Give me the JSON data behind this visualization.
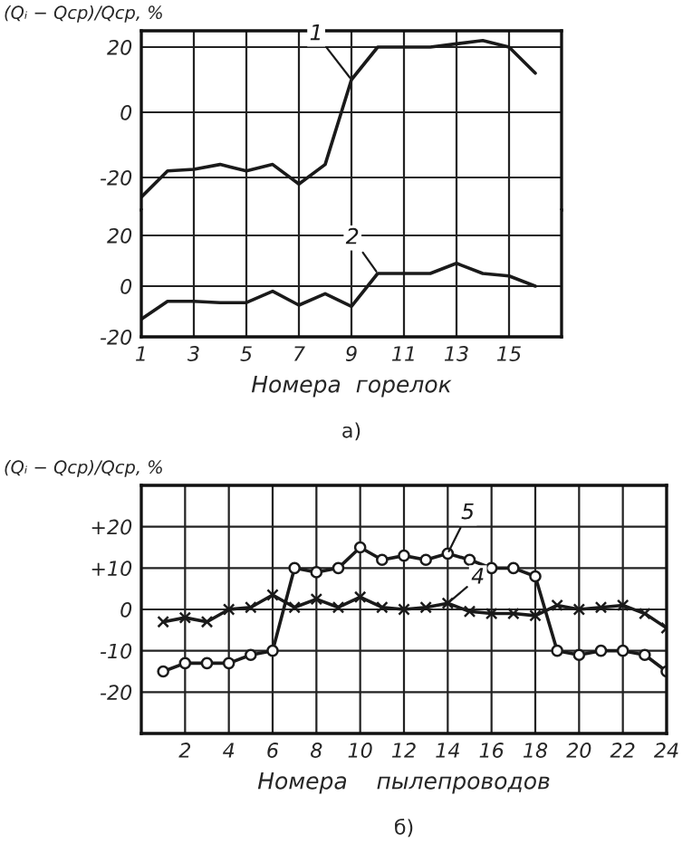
{
  "chart_data": [
    {
      "type": "line",
      "ylabel": "(Qᵢ − Qср)/Qср, %",
      "x": [
        1,
        2,
        3,
        4,
        5,
        6,
        7,
        8,
        9,
        10,
        11,
        12,
        13,
        14,
        15,
        16
      ],
      "xlim": [
        1,
        17
      ],
      "xticks": [
        1,
        3,
        5,
        7,
        9,
        11,
        13,
        15
      ],
      "ylim": [
        -30,
        25
      ],
      "yticks": [
        -20,
        0,
        20
      ],
      "tick_labels": "y",
      "grid": true,
      "line_style": "solid",
      "marker": "none",
      "series": [
        {
          "name": "1",
          "color": "#1a1a1a",
          "values": [
            -26,
            -18,
            -17.5,
            -16,
            -18,
            -16,
            -22,
            -16,
            10,
            20,
            20,
            20,
            21,
            22,
            20,
            12
          ]
        }
      ]
    },
    {
      "type": "line",
      "xlabel": "Номера  горелок",
      "x": [
        1,
        2,
        3,
        4,
        5,
        6,
        7,
        8,
        9,
        10,
        11,
        12,
        13,
        14,
        15,
        16
      ],
      "xlim": [
        1,
        17
      ],
      "xticks": [
        1,
        3,
        5,
        7,
        9,
        11,
        13,
        15
      ],
      "ylim": [
        -20,
        30
      ],
      "yticks": [
        -20,
        0,
        20
      ],
      "grid": true,
      "line_style": "solid",
      "marker": "none",
      "series": [
        {
          "name": "2",
          "color": "#1a1a1a",
          "values": [
            -13,
            -6,
            -6,
            -6.5,
            -6.5,
            -2,
            -7.5,
            -3,
            -8,
            5,
            5,
            5,
            9,
            5,
            4,
            0
          ]
        }
      ],
      "annotations": [
        "а)"
      ]
    },
    {
      "type": "line",
      "ylabel": "(Qᵢ − Qср)/Qср, %",
      "xlabel": "Номера    пылепроводов",
      "x": [
        1,
        2,
        3,
        4,
        5,
        6,
        7,
        8,
        9,
        10,
        11,
        12,
        13,
        14,
        15,
        16,
        17,
        18,
        19,
        20,
        21,
        22,
        23,
        24
      ],
      "xlim": [
        0,
        24
      ],
      "xticks": [
        2,
        4,
        6,
        8,
        10,
        12,
        14,
        16,
        18,
        20,
        22,
        24
      ],
      "ylim": [
        -30,
        30
      ],
      "yticks": [
        {
          "value": -20,
          "label": "-20"
        },
        {
          "value": -10,
          "label": "-10"
        },
        0,
        {
          "value": 10,
          "label": "+10"
        },
        {
          "value": 20,
          "label": "+20"
        }
      ],
      "grid": true,
      "line_style": "solid",
      "series": [
        {
          "name": "5",
          "color": "#1a1a1a",
          "marker": "circle",
          "values": [
            -15,
            -13,
            -13,
            -13,
            -11,
            -10,
            10,
            9,
            10,
            15,
            12,
            13,
            12,
            13.5,
            12,
            10,
            10,
            8,
            -10,
            -11,
            -10,
            -10,
            -11,
            -15
          ]
        },
        {
          "name": "4",
          "color": "#1a1a1a",
          "marker": "cross",
          "values": [
            -3,
            -2,
            -3,
            0,
            0.5,
            3.5,
            0.5,
            2.5,
            0.5,
            3,
            0.5,
            0,
            0.5,
            1.5,
            -0.5,
            -1,
            -1,
            -1.5,
            1,
            0,
            0.5,
            1,
            -1,
            -4.5
          ]
        }
      ],
      "annotations": [
        "б)"
      ]
    }
  ]
}
